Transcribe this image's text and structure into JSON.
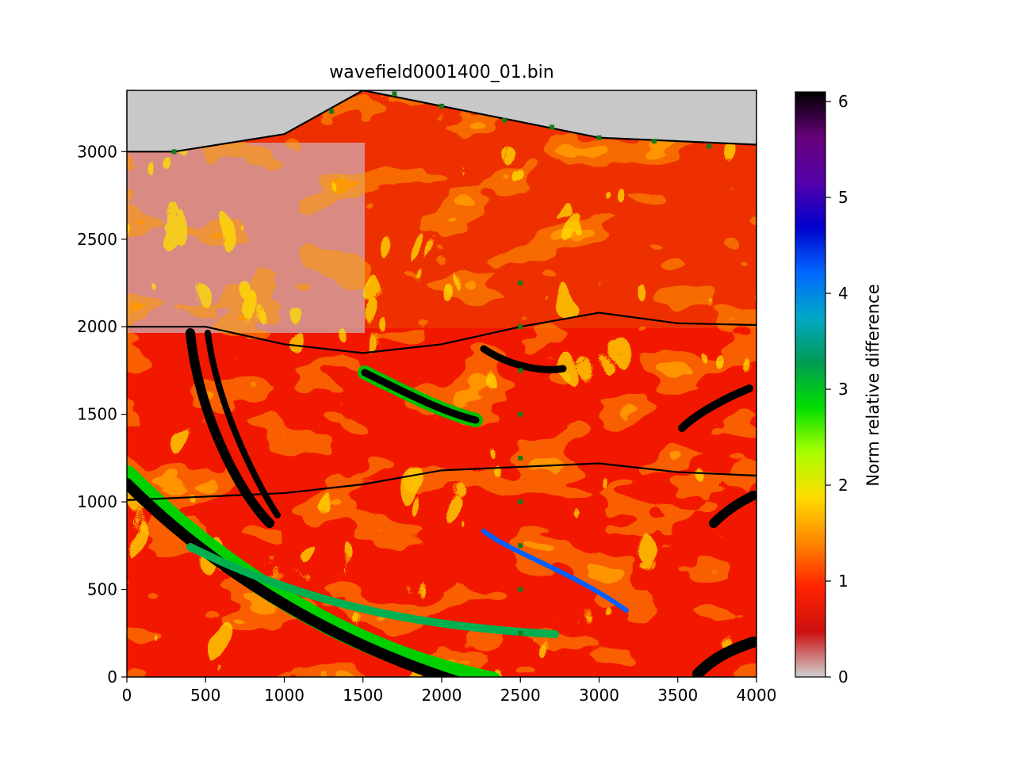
{
  "chart_data": {
    "type": "heatmap",
    "title": "wavefield0001400_01.bin",
    "xlabel": "",
    "ylabel": "",
    "xlim": [
      0,
      4000
    ],
    "ylim": [
      0,
      3350
    ],
    "x_ticks": [
      "0",
      "500",
      "1000",
      "1500",
      "2000",
      "2500",
      "3000",
      "3500",
      "4000"
    ],
    "y_ticks": [
      "0",
      "500",
      "1000",
      "1500",
      "2000",
      "2500",
      "3000"
    ],
    "grid": false,
    "colorbar": {
      "label": "Norm relative difference",
      "range": [
        0,
        6.1
      ],
      "ticks": [
        "0",
        "1",
        "2",
        "3",
        "4",
        "5",
        "6"
      ],
      "colormap": [
        "#d0d0d0",
        "#cc1111",
        "#ff2200",
        "#ff8800",
        "#ffdd00",
        "#a8ff00",
        "#00dd00",
        "#009a55",
        "#00a8c8",
        "#0066ff",
        "#0000cc",
        "#5500aa",
        "#660077",
        "#000000"
      ]
    },
    "surface": [
      [
        0,
        3000
      ],
      [
        300,
        3000
      ],
      [
        1000,
        3100
      ],
      [
        1500,
        3350
      ],
      [
        3000,
        3080
      ],
      [
        4000,
        3040
      ]
    ],
    "interfaces": [
      [
        [
          0,
          2000
        ],
        [
          500,
          2000
        ],
        [
          1000,
          1900
        ],
        [
          1500,
          1850
        ],
        [
          2000,
          1900
        ],
        [
          2500,
          2000
        ],
        [
          3000,
          2080
        ],
        [
          3500,
          2020
        ],
        [
          4000,
          2010
        ]
      ],
      [
        [
          0,
          1010
        ],
        [
          500,
          1030
        ],
        [
          1000,
          1050
        ],
        [
          1500,
          1100
        ],
        [
          2000,
          1180
        ],
        [
          2500,
          1200
        ],
        [
          3000,
          1220
        ],
        [
          3500,
          1170
        ],
        [
          4000,
          1150
        ]
      ]
    ],
    "receivers": [
      [
        300,
        3000
      ],
      [
        1300,
        3230
      ],
      [
        1700,
        3330
      ],
      [
        2000,
        3260
      ],
      [
        2400,
        3180
      ],
      [
        2700,
        3140
      ],
      [
        3000,
        3080
      ],
      [
        3350,
        3060
      ],
      [
        3700,
        3030
      ]
    ],
    "borehole": {
      "x": 2500,
      "depths": [
        250,
        500,
        750,
        1000,
        1250,
        1500,
        1750,
        2000,
        2250
      ]
    },
    "background_color": "#c8c8c8",
    "line_color": "#000000",
    "marker_color": "#1a7a1a"
  }
}
